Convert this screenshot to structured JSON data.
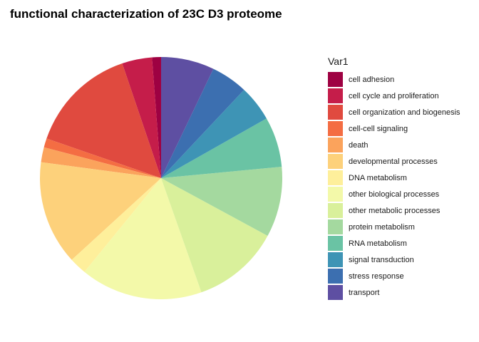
{
  "chart_data": {
    "type": "pie",
    "title": "functional characterization of 23C D3 proteome",
    "legend_title": "Var1",
    "legend_position": "right",
    "categories": [
      "cell adhesion",
      "cell cycle and proliferation",
      "cell organization and biogenesis",
      "cell-cell signaling",
      "death",
      "developmental processes",
      "DNA metabolism",
      "other biological processes",
      "other metabolic processes",
      "protein metabolism",
      "RNA metabolism",
      "signal transduction",
      "stress response",
      "transport"
    ],
    "values": [
      1.2,
      4.0,
      14.5,
      1.2,
      2.0,
      13.9,
      2.3,
      16.3,
      11.7,
      9.4,
      6.7,
      4.8,
      4.9,
      7.1
    ],
    "colors": [
      "#9E0142",
      "#C51D4A",
      "#E04A3F",
      "#F46D43",
      "#FBA35C",
      "#FDD17B",
      "#FEEF9B",
      "#F3F9A9",
      "#D9F09B",
      "#A4D99F",
      "#6AC3A4",
      "#3E94B5",
      "#3C6FB0",
      "#5E4FA2"
    ]
  }
}
